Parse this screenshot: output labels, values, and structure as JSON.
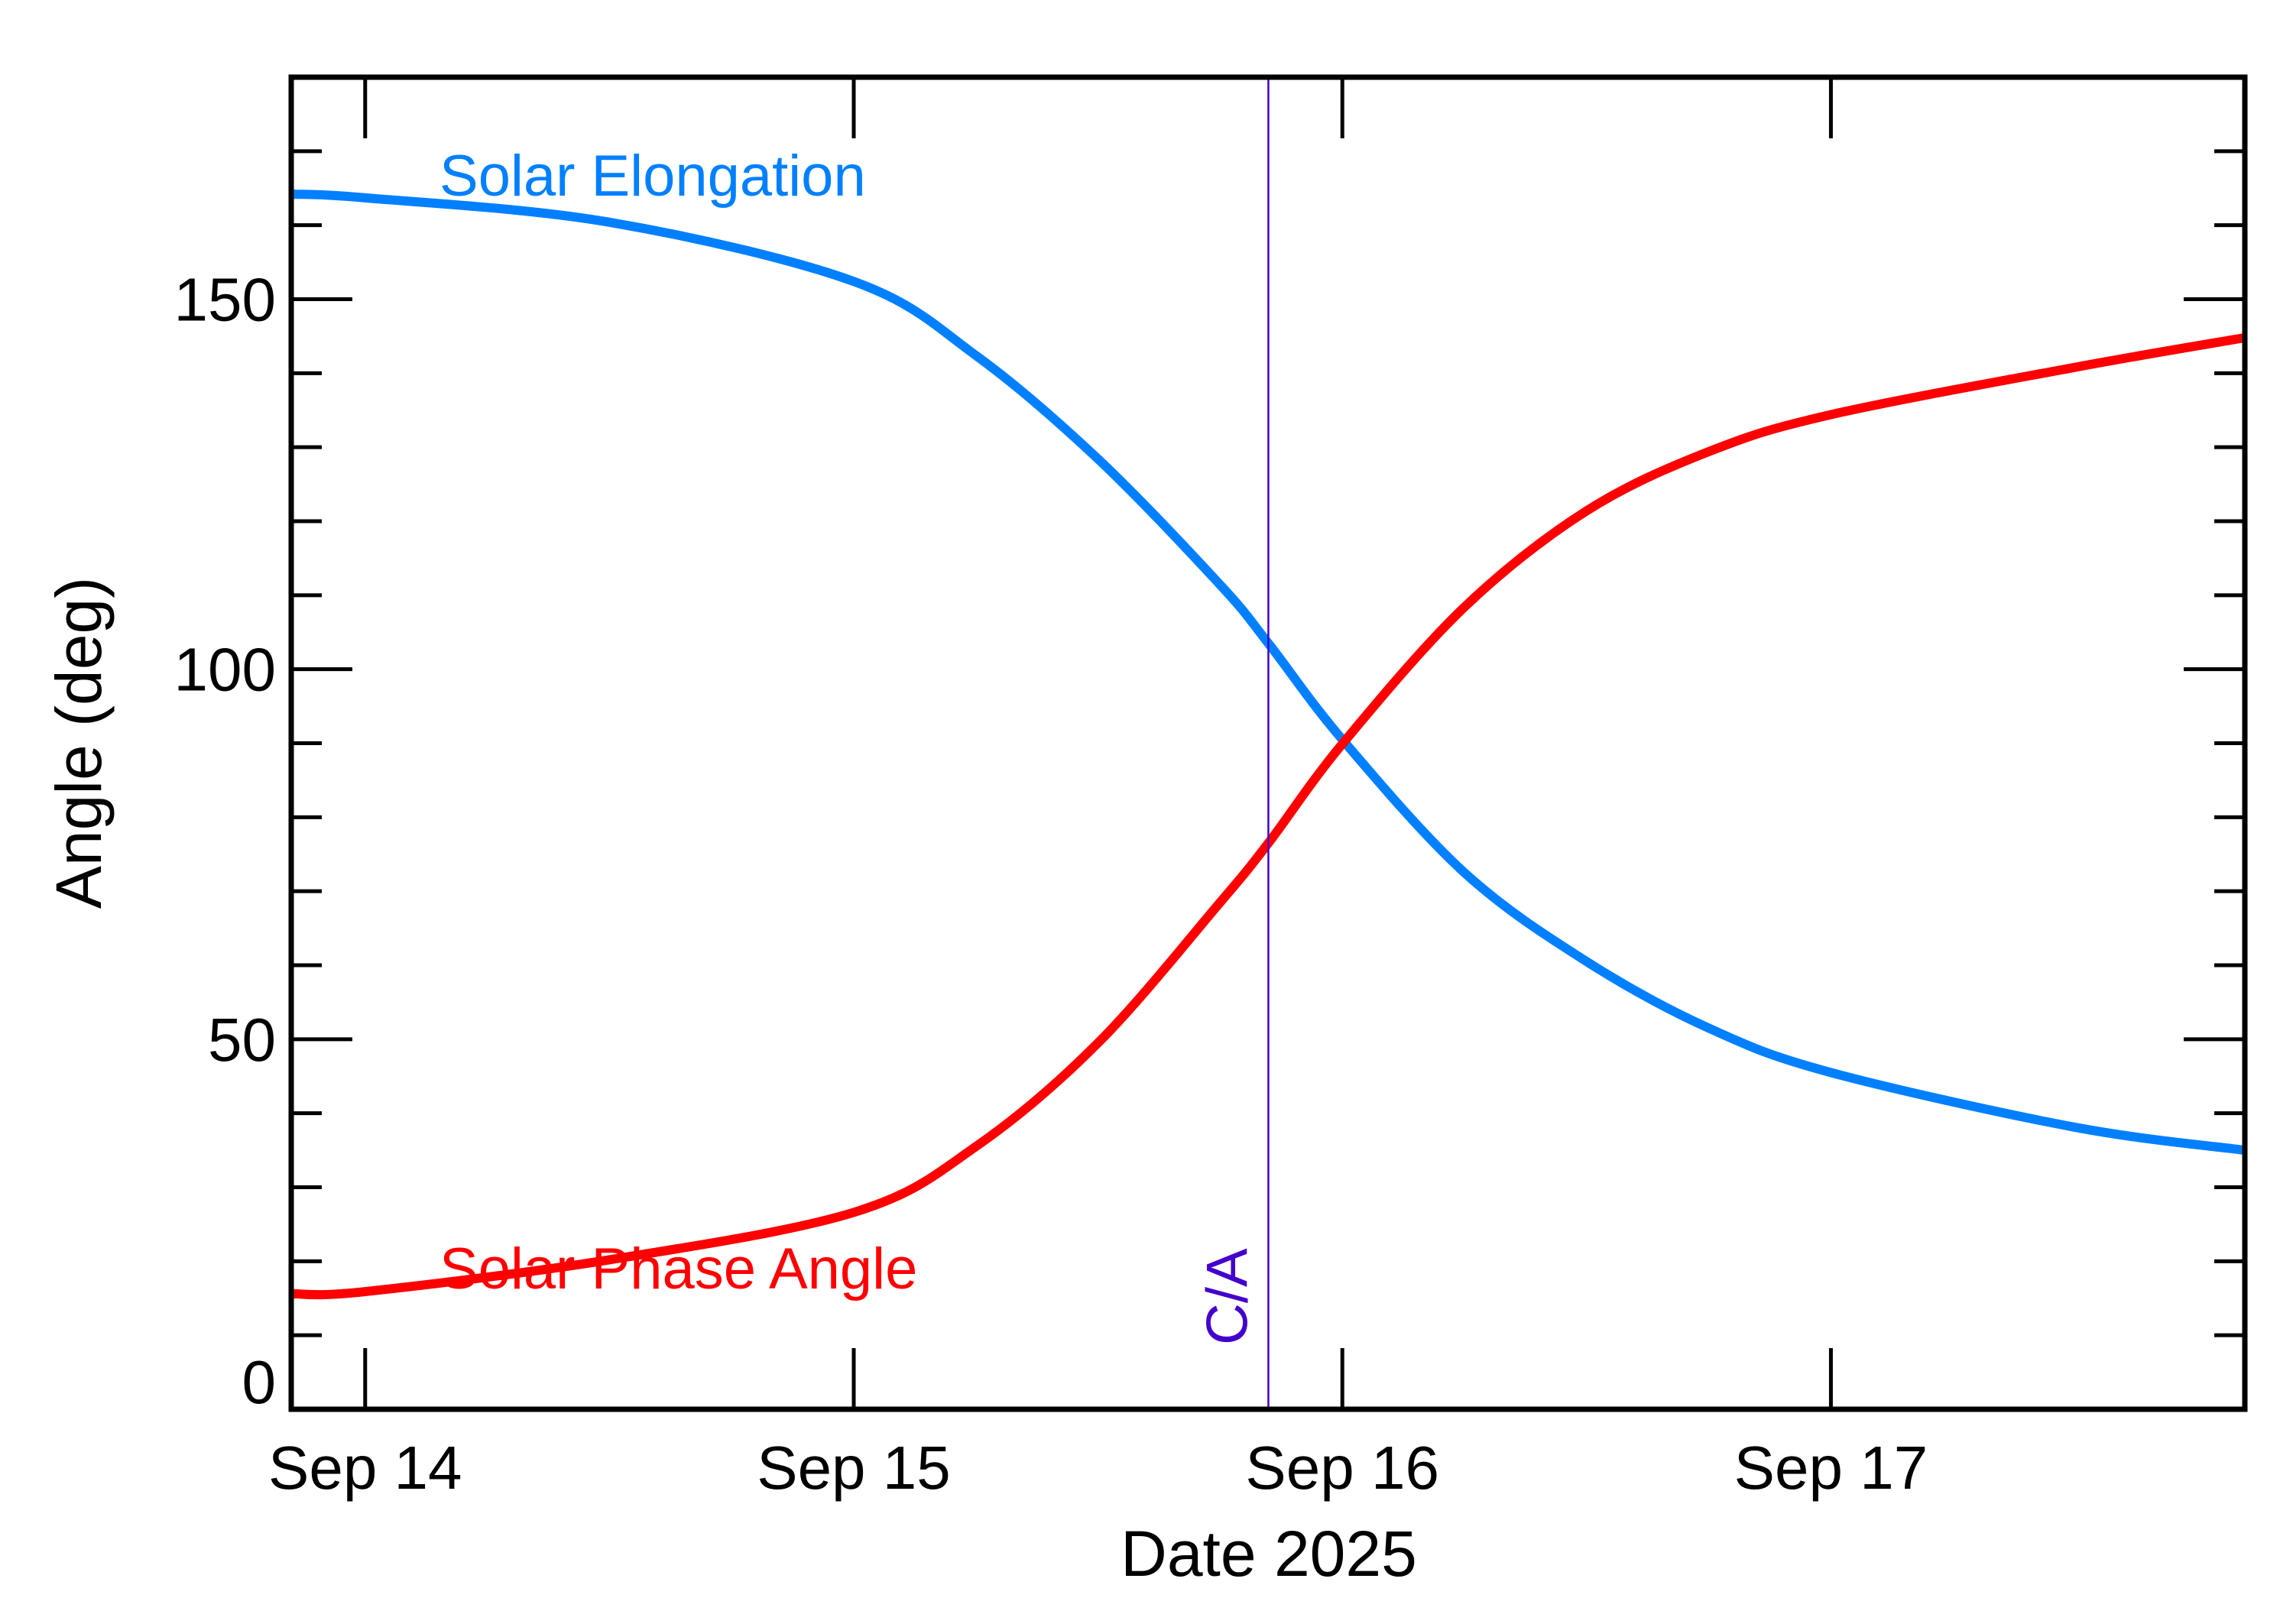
{
  "chart_data": {
    "type": "line",
    "xlabel": "Date 2025",
    "ylabel": "Angle (deg)",
    "xlim": [
      "2025-09-13T20:22",
      "2025-09-17T20:20"
    ],
    "ylim": [
      0,
      180
    ],
    "x_ticks": [
      {
        "date": "2025-09-14T00:00",
        "label": "Sep 14"
      },
      {
        "date": "2025-09-15T00:00",
        "label": "Sep 15"
      },
      {
        "date": "2025-09-16T00:00",
        "label": "Sep 16"
      },
      {
        "date": "2025-09-17T00:00",
        "label": "Sep 17"
      }
    ],
    "y_ticks": [
      {
        "value": 0,
        "label": "0"
      },
      {
        "value": 50,
        "label": "50"
      },
      {
        "value": 100,
        "label": "100"
      },
      {
        "value": 150,
        "label": "150"
      }
    ],
    "y_minor_step": 10,
    "grid": false,
    "series": [
      {
        "name": "Solar Elongation",
        "color": "#0080ff",
        "points": [
          [
            "2025-09-13T20:22",
            164.2
          ],
          [
            "2025-09-14T00:00",
            163.7
          ],
          [
            "2025-09-14T12:00",
            160.4
          ],
          [
            "2025-09-15T00:00",
            152.4
          ],
          [
            "2025-09-15T06:00",
            142.4
          ],
          [
            "2025-09-15T12:00",
            128.4
          ],
          [
            "2025-09-15T18:00",
            111.4
          ],
          [
            "2025-09-15T20:22",
            103.5
          ],
          [
            "2025-09-16T00:00",
            90.5
          ],
          [
            "2025-09-16T06:00",
            72.5
          ],
          [
            "2025-09-16T12:00",
            60.5
          ],
          [
            "2025-09-16T18:00",
            51.5
          ],
          [
            "2025-09-17T00:00",
            45.5
          ],
          [
            "2025-09-17T12:00",
            38.1
          ],
          [
            "2025-09-17T20:20",
            35.0
          ]
        ]
      },
      {
        "name": "Solar Phase Angle",
        "color": "#ff0000",
        "points": [
          [
            "2025-09-13T20:22",
            15.6
          ],
          [
            "2025-09-14T00:00",
            15.9
          ],
          [
            "2025-09-14T12:00",
            20.2
          ],
          [
            "2025-09-15T00:00",
            26.6
          ],
          [
            "2025-09-15T06:00",
            35.5
          ],
          [
            "2025-09-15T12:00",
            49.5
          ],
          [
            "2025-09-15T18:00",
            68.5
          ],
          [
            "2025-09-15T20:22",
            76.5
          ],
          [
            "2025-09-16T00:00",
            89.9
          ],
          [
            "2025-09-16T06:00",
            108.4
          ],
          [
            "2025-09-16T12:00",
            121.4
          ],
          [
            "2025-09-16T18:00",
            129.4
          ],
          [
            "2025-09-17T00:00",
            134.4
          ],
          [
            "2025-09-17T12:00",
            140.8
          ],
          [
            "2025-09-17T20:20",
            144.8
          ]
        ]
      }
    ],
    "annotations": [
      {
        "type": "vline",
        "date": "2025-09-15T20:22",
        "label": "C/A",
        "color": "#4400cc"
      }
    ]
  }
}
